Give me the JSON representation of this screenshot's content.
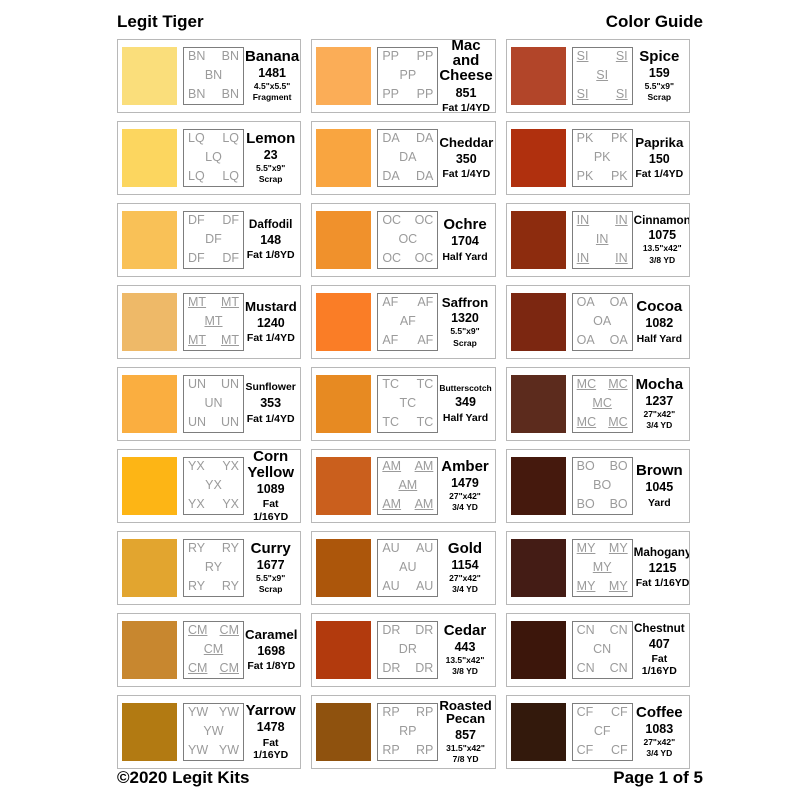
{
  "header": {
    "title_left": "Legit Tiger",
    "title_right": "Color Guide"
  },
  "footer": {
    "copyright": "©2020 Legit Kits",
    "page": "Page 1 of 5"
  },
  "cards": [
    {
      "name": "Banana",
      "number": "1481",
      "code": "BN",
      "underline": false,
      "swatch": "#FADE7B",
      "qty_line1": "4.5\"x5.5\"",
      "qty_line2": "Fragment"
    },
    {
      "name": "Mac and Cheese",
      "number": "851",
      "code": "PP",
      "underline": false,
      "swatch": "#FBAD57",
      "qty_line1": "Fat 1/4YD",
      "qty_line2": ""
    },
    {
      "name": "Spice",
      "number": "159",
      "code": "SI",
      "underline": true,
      "swatch": "#B24529",
      "qty_line1": "5.5\"x9\"",
      "qty_line2": "Scrap"
    },
    {
      "name": "Lemon",
      "number": "23",
      "code": "LQ",
      "underline": false,
      "swatch": "#FCD65F",
      "qty_line1": "5.5\"x9\"",
      "qty_line2": "Scrap"
    },
    {
      "name": "Cheddar",
      "number": "350",
      "code": "DA",
      "underline": false,
      "swatch": "#F9A540",
      "qty_line1": "Fat 1/4YD",
      "qty_line2": ""
    },
    {
      "name": "Paprika",
      "number": "150",
      "code": "PK",
      "underline": false,
      "swatch": "#B0300E",
      "qty_line1": "Fat 1/4YD",
      "qty_line2": ""
    },
    {
      "name": "Daffodil",
      "number": "148",
      "code": "DF",
      "underline": false,
      "swatch": "#F9C157",
      "qty_line1": "Fat 1/8YD",
      "qty_line2": ""
    },
    {
      "name": "Ochre",
      "number": "1704",
      "code": "OC",
      "underline": false,
      "swatch": "#F0912C",
      "qty_line1": "Half Yard",
      "qty_line2": ""
    },
    {
      "name": "Cinnamon",
      "number": "1075",
      "code": "IN",
      "underline": true,
      "swatch": "#8D2C0E",
      "qty_line1": "13.5\"x42\"",
      "qty_line2": "3/8 YD"
    },
    {
      "name": "Mustard",
      "number": "1240",
      "code": "MT",
      "underline": true,
      "swatch": "#EEB968",
      "qty_line1": "Fat 1/4YD",
      "qty_line2": ""
    },
    {
      "name": "Saffron",
      "number": "1320",
      "code": "AF",
      "underline": false,
      "swatch": "#FA7D26",
      "qty_line1": "5.5\"x9\"",
      "qty_line2": "Scrap"
    },
    {
      "name": "Cocoa",
      "number": "1082",
      "code": "OA",
      "underline": false,
      "swatch": "#7C2711",
      "qty_line1": "Half Yard",
      "qty_line2": ""
    },
    {
      "name": "Sunflower",
      "number": "353",
      "code": "UN",
      "underline": false,
      "swatch": "#FAAE40",
      "qty_line1": "Fat 1/4YD",
      "qty_line2": ""
    },
    {
      "name": "Butterscotch",
      "number": "349",
      "code": "TC",
      "underline": false,
      "swatch": "#E78A22",
      "qty_line1": "Half Yard",
      "qty_line2": ""
    },
    {
      "name": "Mocha",
      "number": "1237",
      "code": "MC",
      "underline": true,
      "swatch": "#5C2B1D",
      "qty_line1": "27\"x42\"",
      "qty_line2": "3/4 YD"
    },
    {
      "name": "Corn Yellow",
      "number": "1089",
      "code": "YX",
      "underline": false,
      "swatch": "#FDB515",
      "qty_line1": "Fat 1/16YD",
      "qty_line2": ""
    },
    {
      "name": "Amber",
      "number": "1479",
      "code": "AM",
      "underline": true,
      "swatch": "#CA5F1D",
      "qty_line1": "27\"x42\"",
      "qty_line2": "3/4 YD"
    },
    {
      "name": "Brown",
      "number": "1045",
      "code": "BO",
      "underline": false,
      "swatch": "#45190D",
      "qty_line1": "Yard",
      "qty_line2": ""
    },
    {
      "name": "Curry",
      "number": "1677",
      "code": "RY",
      "underline": false,
      "swatch": "#E2A52F",
      "qty_line1": "5.5\"x9\"",
      "qty_line2": "Scrap"
    },
    {
      "name": "Gold",
      "number": "1154",
      "code": "AU",
      "underline": false,
      "swatch": "#AC560B",
      "qty_line1": "27\"x42\"",
      "qty_line2": "3/4 YD"
    },
    {
      "name": "Mahogany",
      "number": "1215",
      "code": "MY",
      "underline": true,
      "swatch": "#441C15",
      "qty_line1": "Fat 1/16YD",
      "qty_line2": ""
    },
    {
      "name": "Caramel",
      "number": "1698",
      "code": "CM",
      "underline": true,
      "swatch": "#C8872F",
      "qty_line1": "Fat 1/8YD",
      "qty_line2": ""
    },
    {
      "name": "Cedar",
      "number": "443",
      "code": "DR",
      "underline": false,
      "swatch": "#B23A0D",
      "qty_line1": "13.5\"x42\"",
      "qty_line2": "3/8 YD"
    },
    {
      "name": "Chestnut",
      "number": "407",
      "code": "CN",
      "underline": false,
      "swatch": "#3C160B",
      "qty_line1": "Fat 1/16YD",
      "qty_line2": ""
    },
    {
      "name": "Yarrow",
      "number": "1478",
      "code": "YW",
      "underline": false,
      "swatch": "#B27A12",
      "qty_line1": "Fat 1/16YD",
      "qty_line2": ""
    },
    {
      "name": "Roasted Pecan",
      "number": "857",
      "code": "RP",
      "underline": false,
      "swatch": "#8F520E",
      "qty_line1": "31.5\"x42\"",
      "qty_line2": "7/8 YD"
    },
    {
      "name": "Coffee",
      "number": "1083",
      "code": "CF",
      "underline": false,
      "swatch": "#33190C",
      "qty_line1": "27\"x42\"",
      "qty_line2": "3/4 YD"
    }
  ]
}
